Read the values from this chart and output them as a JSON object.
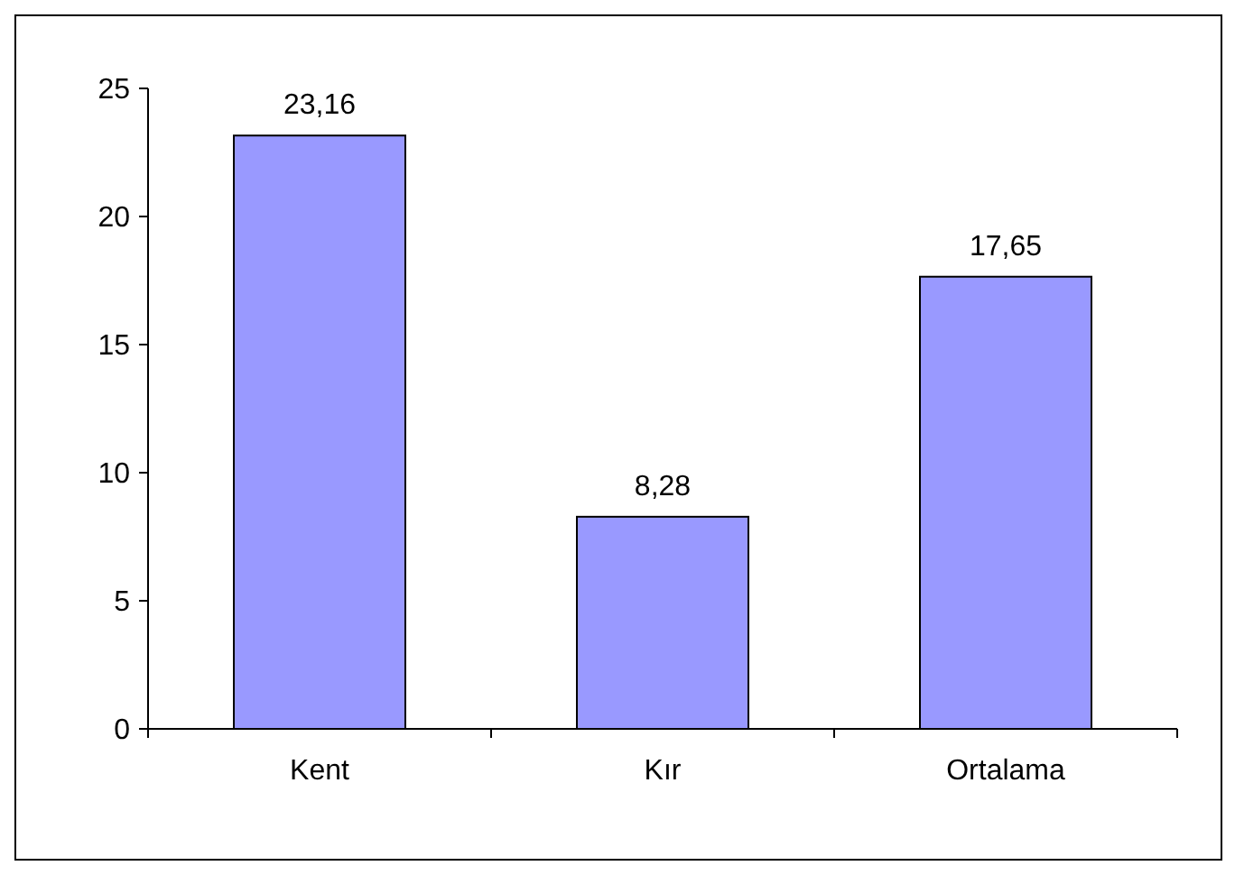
{
  "chart_data": {
    "type": "bar",
    "categories": [
      "Kent",
      "Kır",
      "Ortalama"
    ],
    "values": [
      23.16,
      8.28,
      17.65
    ],
    "value_labels": [
      "23,16",
      "8,28",
      "17,65"
    ],
    "color": "#9999ff",
    "ylim": [
      0,
      25
    ],
    "yticks": [
      0,
      5,
      10,
      15,
      20,
      25
    ],
    "grid": false
  }
}
